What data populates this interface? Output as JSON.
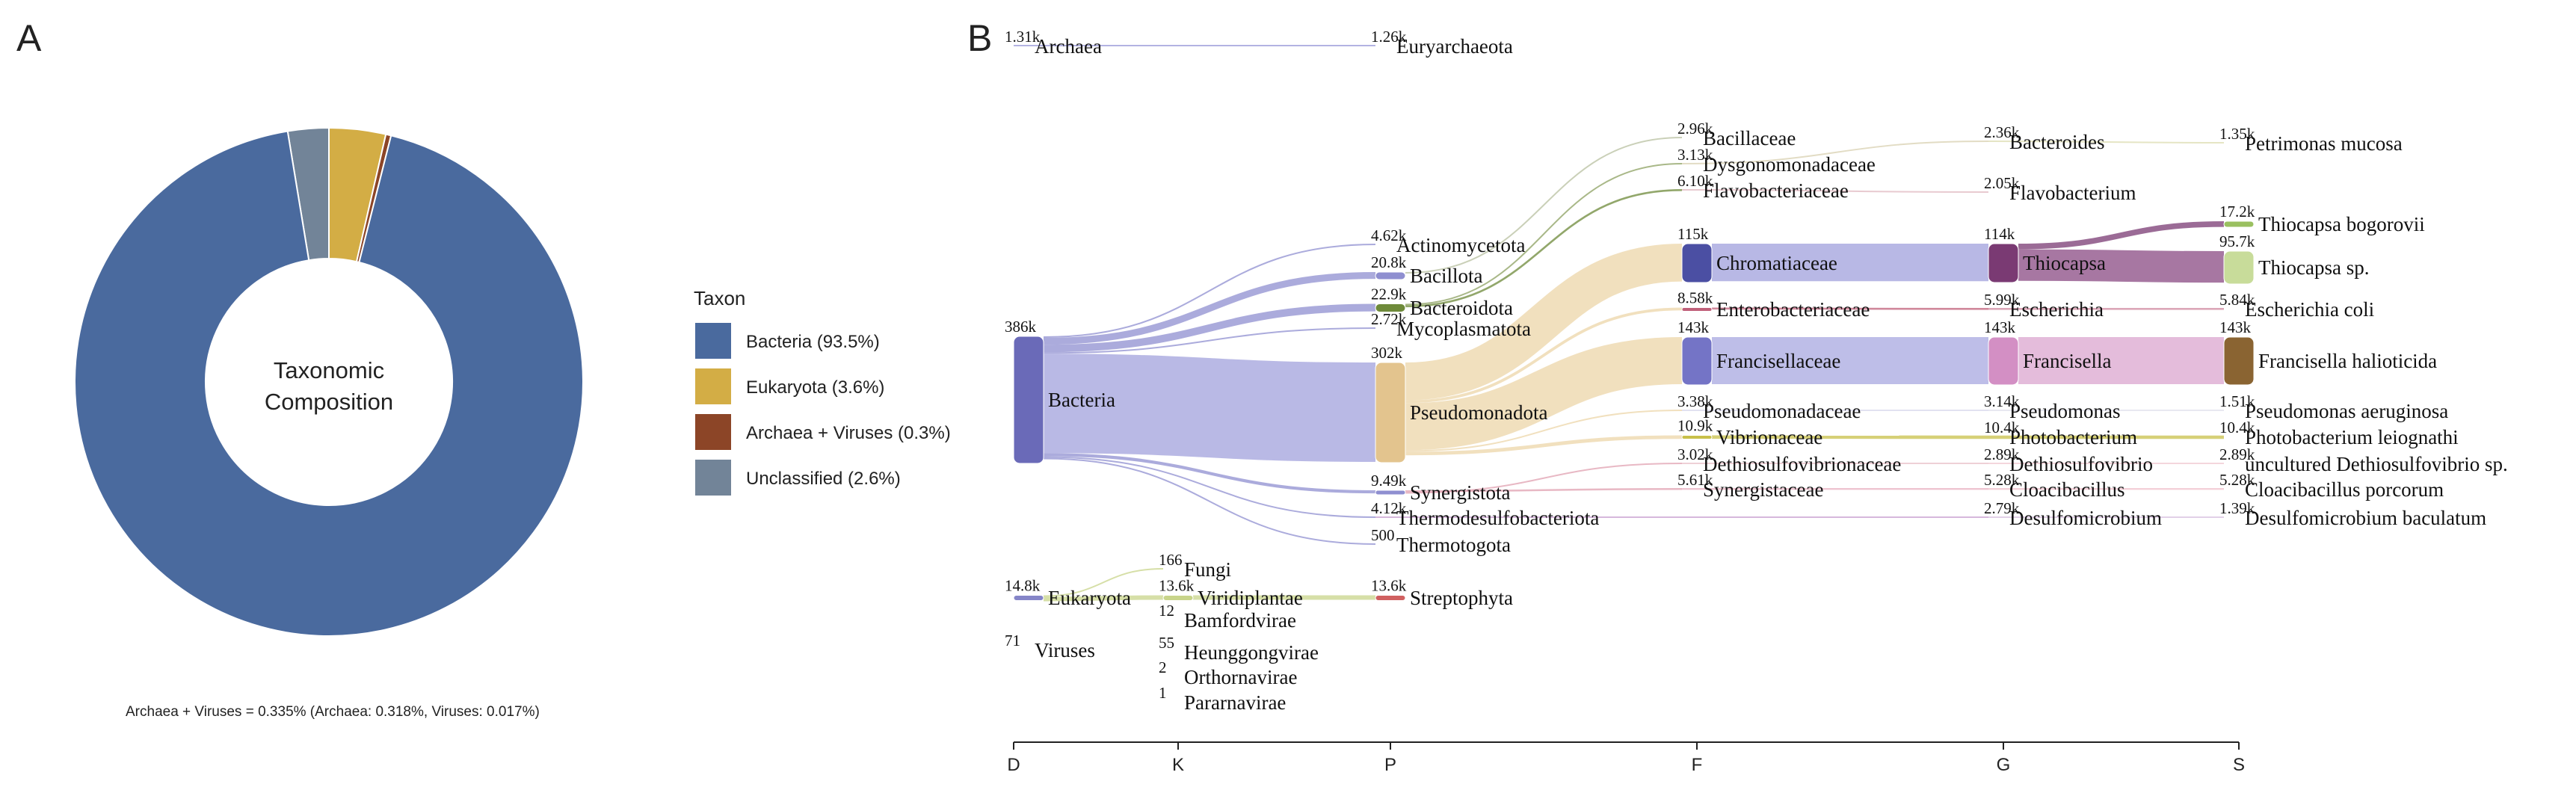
{
  "panels": {
    "a": "A",
    "b": "B"
  },
  "chart_data": [
    {
      "type": "pie",
      "subtype": "donut",
      "center_text": [
        "Taxonomic",
        "Composition"
      ],
      "legend_title": "Taxon",
      "slices": [
        {
          "name": "Bacteria",
          "legend": "Bacteria (93.5%)",
          "value": 93.5,
          "color": "#4a6a9e"
        },
        {
          "name": "Eukaryota",
          "legend": "Eukaryota (3.6%)",
          "value": 3.6,
          "color": "#d3ad45"
        },
        {
          "name": "Archaea + Viruses",
          "legend": "Archaea + Viruses (0.3%)",
          "value": 0.335,
          "color": "#8c4527"
        },
        {
          "name": "Unclassified",
          "legend": "Unclassified (2.6%)",
          "value": 2.6,
          "color": "#728498"
        }
      ],
      "note": "Archaea + Viruses = 0.335% (Archaea: 0.318%, Viruses: 0.017%)"
    },
    {
      "type": "sankey",
      "levels": [
        "D",
        "K",
        "P",
        "F",
        "G",
        "S"
      ],
      "nodes": [
        {
          "id": "archaea",
          "label": "Archaea",
          "value_label": "1.31k",
          "level": "D"
        },
        {
          "id": "eury",
          "label": "Euryarchaeota",
          "value_label": "1.26k",
          "level": "P"
        },
        {
          "id": "bacteria",
          "label": "Bacteria",
          "value_label": "386k",
          "level": "D",
          "color": "#6a6ab8"
        },
        {
          "id": "eukaryota",
          "label": "Eukaryota",
          "value_label": "14.8k",
          "level": "D",
          "color": "#8585c8"
        },
        {
          "id": "viruses",
          "label": "Viruses",
          "value_label": "71",
          "level": "D"
        },
        {
          "id": "fungi",
          "label": "Fungi",
          "value_label": "166",
          "level": "K"
        },
        {
          "id": "viridi",
          "label": "Viridiplantae",
          "value_label": "13.6k",
          "level": "K",
          "color": "#c8d48a"
        },
        {
          "id": "bamford",
          "label": "Bamfordvirae",
          "value_label": "12",
          "level": "K"
        },
        {
          "id": "heunggong",
          "label": "Heunggongvirae",
          "value_label": "55",
          "level": "K"
        },
        {
          "id": "orthorna",
          "label": "Orthornavirae",
          "value_label": "2",
          "level": "K"
        },
        {
          "id": "pararna",
          "label": "Pararnavirae",
          "value_label": "1",
          "level": "K"
        },
        {
          "id": "actino",
          "label": "Actinomycetota",
          "value_label": "4.62k",
          "level": "P"
        },
        {
          "id": "bacillota",
          "label": "Bacillota",
          "value_label": "20.8k",
          "level": "P",
          "color": "#8f8fd0"
        },
        {
          "id": "bacteroidota",
          "label": "Bacteroidota",
          "value_label": "22.9k",
          "level": "P",
          "color": "#6e8a3a"
        },
        {
          "id": "myco",
          "label": "Mycoplasmatota",
          "value_label": "2.72k",
          "level": "P"
        },
        {
          "id": "pseudo",
          "label": "Pseudomonadota",
          "value_label": "302k",
          "level": "P",
          "color": "#e3c48e"
        },
        {
          "id": "synergistota",
          "label": "Synergistota",
          "value_label": "9.49k",
          "level": "P",
          "color": "#8f8fd0"
        },
        {
          "id": "thermodesulfo",
          "label": "Thermodesulfobacteriota",
          "value_label": "4.12k",
          "level": "P"
        },
        {
          "id": "thermotogota",
          "label": "Thermotogota",
          "value_label": "500",
          "level": "P"
        },
        {
          "id": "strepto",
          "label": "Streptophyta",
          "value_label": "13.6k",
          "level": "P",
          "color": "#d06060"
        },
        {
          "id": "bacillaceae",
          "label": "Bacillaceae",
          "value_label": "2.96k",
          "level": "F"
        },
        {
          "id": "dysgono",
          "label": "Dysgonomonadaceae",
          "value_label": "3.13k",
          "level": "F"
        },
        {
          "id": "flavobacteriaceae",
          "label": "Flavobacteriaceae",
          "value_label": "6.10k",
          "level": "F"
        },
        {
          "id": "chromatiaceae",
          "label": "Chromatiaceae",
          "value_label": "115k",
          "level": "F",
          "color": "#4b4fa3"
        },
        {
          "id": "enterobact",
          "label": "Enterobacteriaceae",
          "value_label": "8.58k",
          "level": "F",
          "color": "#c0607a"
        },
        {
          "id": "francisellaceae",
          "label": "Francisellaceae",
          "value_label": "143k",
          "level": "F",
          "color": "#7474c6"
        },
        {
          "id": "pseudomonadaceae",
          "label": "Pseudomonadaceae",
          "value_label": "3.38k",
          "level": "F"
        },
        {
          "id": "vibrionaceae",
          "label": "Vibrionaceae",
          "value_label": "10.9k",
          "level": "F",
          "color": "#c8c04a"
        },
        {
          "id": "dethiosulfovib",
          "label": "Dethiosulfovibrionaceae",
          "value_label": "3.02k",
          "level": "F"
        },
        {
          "id": "synergistaceae",
          "label": "Synergistaceae",
          "value_label": "5.61k",
          "level": "F"
        },
        {
          "id": "bacteroides",
          "label": "Bacteroides",
          "value_label": "2.36k",
          "level": "G"
        },
        {
          "id": "flavobacterium",
          "label": "Flavobacterium",
          "value_label": "2.05k",
          "level": "G"
        },
        {
          "id": "thiocapsa",
          "label": "Thiocapsa",
          "value_label": "114k",
          "level": "G",
          "color": "#7a3a73"
        },
        {
          "id": "escherichia",
          "label": "Escherichia",
          "value_label": "5.99k",
          "level": "G"
        },
        {
          "id": "francisella",
          "label": "Francisella",
          "value_label": "143k",
          "level": "G",
          "color": "#d38fc4"
        },
        {
          "id": "pseudomonas",
          "label": "Pseudomonas",
          "value_label": "3.14k",
          "level": "G"
        },
        {
          "id": "photobacterium",
          "label": "Photobacterium",
          "value_label": "10.4k",
          "level": "G"
        },
        {
          "id": "dethiosulfovibrio",
          "label": "Dethiosulfovibrio",
          "value_label": "2.89k",
          "level": "G"
        },
        {
          "id": "cloacibacillus",
          "label": "Cloacibacillus",
          "value_label": "5.28k",
          "level": "G"
        },
        {
          "id": "desulfomicrobium",
          "label": "Desulfomicrobium",
          "value_label": "2.79k",
          "level": "G"
        },
        {
          "id": "petrimonas",
          "label": "Petrimonas mucosa",
          "value_label": "1.35k",
          "level": "S"
        },
        {
          "id": "tbogorovii",
          "label": "Thiocapsa bogorovii",
          "value_label": "17.2k",
          "level": "S",
          "color": "#9ac060"
        },
        {
          "id": "tsp",
          "label": "Thiocapsa sp.",
          "value_label": "95.7k",
          "level": "S",
          "color": "#c8dc9a"
        },
        {
          "id": "ecoli",
          "label": "Escherichia coli",
          "value_label": "5.84k",
          "level": "S"
        },
        {
          "id": "fhalio",
          "label": "Francisella halioticida",
          "value_label": "143k",
          "level": "S",
          "color": "#8a6432"
        },
        {
          "id": "paeru",
          "label": "Pseudomonas aeruginosa",
          "value_label": "1.51k",
          "level": "S"
        },
        {
          "id": "pleio",
          "label": "Photobacterium leiognathi",
          "value_label": "10.4k",
          "level": "S"
        },
        {
          "id": "udethio",
          "label": "uncultured Dethiosulfovibrio sp.",
          "value_label": "2.89k",
          "level": "S"
        },
        {
          "id": "cporcorum",
          "label": "Cloacibacillus porcorum",
          "value_label": "5.28k",
          "level": "S"
        },
        {
          "id": "dbaculatum",
          "label": "Desulfomicrobium baculatum",
          "value_label": "1.39k",
          "level": "S"
        }
      ],
      "links": [
        {
          "source": "archaea",
          "target": "eury",
          "value": 1.26,
          "color": "#9a9ad8"
        },
        {
          "source": "bacteria",
          "target": "actino",
          "value": 4.62,
          "color": "#8f8fd0"
        },
        {
          "source": "bacteria",
          "target": "bacillota",
          "value": 20.8,
          "color": "#8f8fd0"
        },
        {
          "source": "bacteria",
          "target": "bacteroidota",
          "value": 22.9,
          "color": "#8f8fd0"
        },
        {
          "source": "bacteria",
          "target": "myco",
          "value": 2.72,
          "color": "#8f8fd0"
        },
        {
          "source": "bacteria",
          "target": "pseudo",
          "value": 302,
          "color": "#a2a2dc"
        },
        {
          "source": "bacteria",
          "target": "synergistota",
          "value": 9.49,
          "color": "#8f8fd0"
        },
        {
          "source": "bacteria",
          "target": "thermodesulfo",
          "value": 4.12,
          "color": "#8f8fd0"
        },
        {
          "source": "bacteria",
          "target": "thermotogota",
          "value": 0.5,
          "color": "#8f8fd0"
        },
        {
          "source": "eukaryota",
          "target": "fungi",
          "value": 0.166,
          "color": "#c8d48a"
        },
        {
          "source": "eukaryota",
          "target": "viridi",
          "value": 13.6,
          "color": "#c8d48a"
        },
        {
          "source": "viridi",
          "target": "strepto",
          "value": 13.6,
          "color": "#c8d48a"
        },
        {
          "source": "bacillota",
          "target": "bacillaceae",
          "value": 2.96,
          "color": "#b8c0a0"
        },
        {
          "source": "bacteroidota",
          "target": "dysgono",
          "value": 3.13,
          "color": "#8ca060"
        },
        {
          "source": "bacteroidota",
          "target": "flavobacteriaceae",
          "value": 6.1,
          "color": "#6e8a3a"
        },
        {
          "source": "pseudo",
          "target": "chromatiaceae",
          "value": 115,
          "color": "#ecd5a8"
        },
        {
          "source": "pseudo",
          "target": "enterobact",
          "value": 8.58,
          "color": "#ecd5a8"
        },
        {
          "source": "pseudo",
          "target": "francisellaceae",
          "value": 143,
          "color": "#ecd5a8"
        },
        {
          "source": "pseudo",
          "target": "pseudomonadaceae",
          "value": 3.38,
          "color": "#ecd5a8"
        },
        {
          "source": "pseudo",
          "target": "vibrionaceae",
          "value": 10.9,
          "color": "#ecd5a8"
        },
        {
          "source": "synergistota",
          "target": "synergistaceae",
          "value": 5.61,
          "color": "#e0a0b0"
        },
        {
          "source": "synergistota",
          "target": "dethiosulfovib",
          "value": 3.02,
          "color": "#e0a0b0"
        },
        {
          "source": "dysgono",
          "target": "bacteroides",
          "value": 2.36,
          "color": "#d8d0b0"
        },
        {
          "source": "flavobacteriaceae",
          "target": "flavobacterium",
          "value": 2.05,
          "color": "#e0b8c0"
        },
        {
          "source": "chromatiaceae",
          "target": "thiocapsa",
          "value": 114,
          "color": "#a0a0dc"
        },
        {
          "source": "enterobact",
          "target": "escherichia",
          "value": 5.99,
          "color": "#c0607a"
        },
        {
          "source": "francisellaceae",
          "target": "francisella",
          "value": 143,
          "color": "#a8a8e0"
        },
        {
          "source": "pseudomonadaceae",
          "target": "pseudomonas",
          "value": 3.14,
          "color": "#d8d8ec"
        },
        {
          "source": "vibrionaceae",
          "target": "photobacterium",
          "value": 10.4,
          "color": "#c8c04a"
        },
        {
          "source": "dethiosulfovib",
          "target": "dethiosulfovibrio",
          "value": 2.89,
          "color": "#e8c0c8"
        },
        {
          "source": "synergistaceae",
          "target": "cloacibacillus",
          "value": 5.28,
          "color": "#e8b0c0"
        },
        {
          "source": "thermodesulfo",
          "target": "desulfomicrobium",
          "value": 2.79,
          "color": "#c8a0d0"
        },
        {
          "source": "bacteroides",
          "target": "petrimonas",
          "value": 1.35,
          "color": "#dcdcb0"
        },
        {
          "source": "thiocapsa",
          "target": "tbogorovii",
          "value": 17.2,
          "color": "#7a3a73"
        },
        {
          "source": "thiocapsa",
          "target": "tsp",
          "value": 95.7,
          "color": "#8a4a83"
        },
        {
          "source": "escherichia",
          "target": "ecoli",
          "value": 5.84,
          "color": "#d08aa0"
        },
        {
          "source": "francisella",
          "target": "fhalio",
          "value": 143,
          "color": "#dba5cf"
        },
        {
          "source": "pseudomonas",
          "target": "paeru",
          "value": 1.51,
          "color": "#e0e0ec"
        },
        {
          "source": "photobacterium",
          "target": "pleio",
          "value": 10.4,
          "color": "#c8c04a"
        },
        {
          "source": "dethiosulfovibrio",
          "target": "udethio",
          "value": 2.89,
          "color": "#f0c8d0"
        },
        {
          "source": "cloacibacillus",
          "target": "cporcorum",
          "value": 5.28,
          "color": "#f0c0cc"
        },
        {
          "source": "desulfomicrobium",
          "target": "dbaculatum",
          "value": 1.39,
          "color": "#d8c0e0"
        }
      ]
    }
  ]
}
